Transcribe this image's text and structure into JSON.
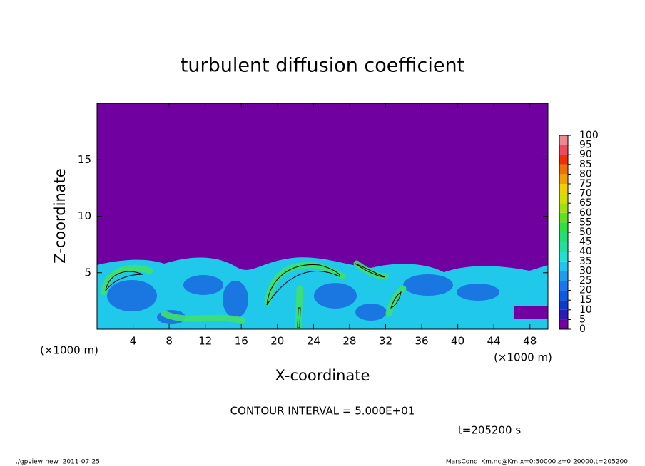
{
  "chart_data": {
    "type": "contour",
    "title": "turbulent diffusion coefficient",
    "x_label": "X-coordinate",
    "y_label": "Z-coordinate",
    "x_unit": "(×1000 m)",
    "xlim": [
      0,
      50
    ],
    "ylim": [
      0,
      20
    ],
    "xticks": [
      4,
      8,
      12,
      16,
      20,
      24,
      28,
      32,
      36,
      40,
      44,
      48
    ],
    "yticks": [
      5,
      10,
      15
    ],
    "colorbar_levels": [
      0,
      5,
      10,
      15,
      20,
      25,
      30,
      35,
      40,
      45,
      50,
      55,
      60,
      65,
      70,
      75,
      80,
      85,
      90,
      95,
      100
    ],
    "colorbar_colors": [
      "#7000a0",
      "#2a1cb4",
      "#0a3ccc",
      "#0a5ae4",
      "#1478f0",
      "#1e9cf0",
      "#20c4f0",
      "#20e0d0",
      "#20e0a0",
      "#20e070",
      "#30e040",
      "#60e020",
      "#a0e010",
      "#d0e000",
      "#f0d000",
      "#f0a000",
      "#f07000",
      "#f03000",
      "#f04a60",
      "#f08890"
    ],
    "contour_interval": "CONTOUR INTERVAL = 5.000E+01",
    "time": "t=205200 s",
    "footer_left": "./gpview-new  2011-07-25",
    "footer_right": "MarsCond_Km.nc@Km,x=0:50000,z=0:20000,t=205200"
  }
}
